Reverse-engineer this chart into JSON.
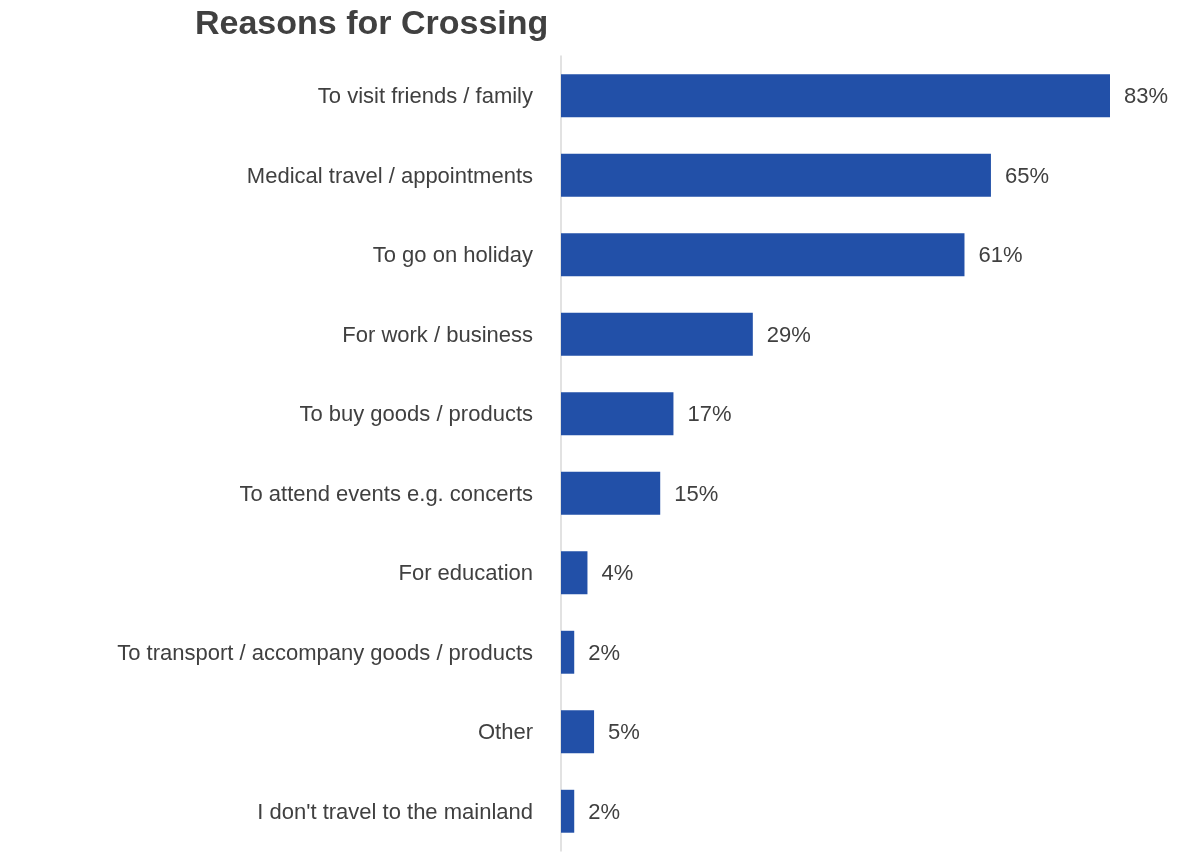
{
  "chart_data": {
    "type": "bar",
    "orientation": "horizontal",
    "title": "Reasons for Crossing",
    "categories": [
      "To visit friends / family",
      "Medical travel / appointments",
      "To go on holiday",
      "For work / business",
      "To buy goods / products",
      "To attend events e.g. concerts",
      "For education",
      "To transport / accompany goods / products",
      "Other",
      "I don't travel to the mainland"
    ],
    "values": [
      83,
      65,
      61,
      29,
      17,
      15,
      4,
      2,
      5,
      2
    ],
    "value_labels": [
      "83%",
      "65%",
      "61%",
      "29%",
      "17%",
      "15%",
      "4%",
      "2%",
      "5%",
      "2%"
    ],
    "color": "#2250a8",
    "grid": false
  }
}
